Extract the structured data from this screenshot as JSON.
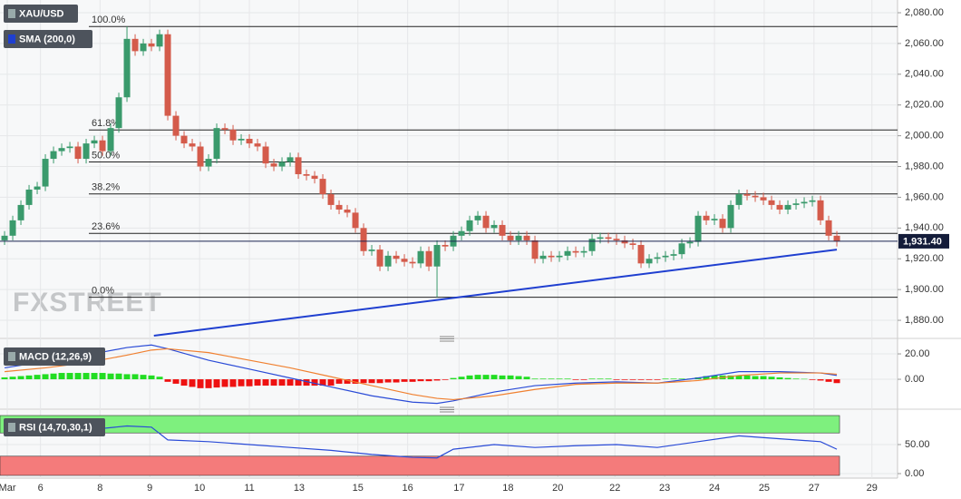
{
  "chart_data": [
    {
      "type": "candlestick",
      "title": "XAU/USD",
      "watermark": "FXSTREET",
      "up_color": "#3a9a6c",
      "down_color": "#d45b4b",
      "grid": true,
      "ylim": [
        1870,
        2086.5
      ],
      "yticks": [
        {
          "value": 1880,
          "label": "1,880.00"
        },
        {
          "value": 1900,
          "label": "1,900.00"
        },
        {
          "value": 1920,
          "label": "1,920.00"
        },
        {
          "value": 1940,
          "label": "1,940.00"
        },
        {
          "value": 1960,
          "label": "1,960.00"
        },
        {
          "value": 1980,
          "label": "1,980.00"
        },
        {
          "value": 2000,
          "label": "2,000.00"
        },
        {
          "value": 2020,
          "label": "2,020.00"
        },
        {
          "value": 2040,
          "label": "2,040.00"
        },
        {
          "value": 2060,
          "label": "2,060.00"
        },
        {
          "value": 2080,
          "label": "2,080.00"
        }
      ],
      "open": [
        1932,
        1935,
        1945,
        1955,
        1965,
        1967,
        1985,
        1990,
        1992,
        1993,
        1985,
        1995,
        1997,
        1990,
        2005,
        2025,
        2063,
        2055,
        2060,
        2058,
        2066,
        2013,
        2000,
        1995,
        1993,
        1980,
        1985,
        2005,
        2004,
        1997,
        1998,
        1995,
        1993,
        1982,
        1980,
        1983,
        1986,
        1975,
        1974,
        1972,
        1962,
        1955,
        1952,
        1950,
        1940,
        1925,
        1926,
        1915,
        1922,
        1920,
        1918,
        1917,
        1925,
        1915,
        1929,
        1928,
        1935,
        1938,
        1945,
        1948,
        1940,
        1942,
        1935,
        1932,
        1935,
        1932,
        1920,
        1922,
        1921,
        1922,
        1925,
        1924,
        1925,
        1933,
        1934,
        1933,
        1932,
        1930,
        1929,
        1917,
        1920,
        1921,
        1922,
        1923,
        1930,
        1931,
        1948,
        1945,
        1946,
        1940,
        1955,
        1962,
        1961,
        1960,
        1958,
        1955,
        1952,
        1955,
        1956,
        1957,
        1958,
        1945,
        1935
      ],
      "high": [
        1938,
        1948,
        1958,
        1968,
        1970,
        1988,
        1993,
        1995,
        1996,
        1996,
        1998,
        2000,
        2000,
        2008,
        2028,
        2071,
        2066,
        2063,
        2063,
        2069,
        2069,
        2016,
        2003,
        1998,
        1996,
        1988,
        2008,
        2008,
        2007,
        2001,
        2001,
        1998,
        1996,
        1985,
        1986,
        1989,
        1989,
        1978,
        1977,
        1975,
        1965,
        1958,
        1955,
        1953,
        1943,
        1929,
        1929,
        1925,
        1925,
        1923,
        1921,
        1928,
        1928,
        1932,
        1932,
        1938,
        1941,
        1948,
        1951,
        1951,
        1945,
        1945,
        1938,
        1938,
        1938,
        1935,
        1925,
        1925,
        1925,
        1928,
        1928,
        1928,
        1936,
        1937,
        1937,
        1936,
        1935,
        1933,
        1932,
        1923,
        1924,
        1925,
        1926,
        1933,
        1934,
        1951,
        1951,
        1949,
        1949,
        1958,
        1965,
        1965,
        1964,
        1963,
        1961,
        1958,
        1958,
        1959,
        1960,
        1961,
        1961,
        1948,
        1938
      ],
      "low": [
        1929,
        1932,
        1942,
        1952,
        1962,
        1964,
        1982,
        1987,
        1989,
        1982,
        1982,
        1992,
        1987,
        1987,
        2002,
        2022,
        2052,
        2052,
        2055,
        2055,
        2010,
        1997,
        1992,
        1990,
        1977,
        1977,
        1982,
        2001,
        1994,
        1994,
        1992,
        1990,
        1979,
        1977,
        1977,
        1980,
        1972,
        1971,
        1969,
        1959,
        1952,
        1949,
        1947,
        1937,
        1922,
        1922,
        1912,
        1912,
        1917,
        1915,
        1914,
        1914,
        1912,
        1895,
        1925,
        1925,
        1932,
        1935,
        1942,
        1937,
        1937,
        1932,
        1929,
        1929,
        1929,
        1917,
        1917,
        1918,
        1918,
        1919,
        1921,
        1921,
        1922,
        1930,
        1930,
        1929,
        1927,
        1926,
        1914,
        1914,
        1917,
        1918,
        1919,
        1920,
        1927,
        1928,
        1942,
        1942,
        1937,
        1937,
        1952,
        1958,
        1957,
        1955,
        1952,
        1949,
        1949,
        1952,
        1953,
        1954,
        1942,
        1932,
        1928
      ],
      "close": [
        1935,
        1945,
        1955,
        1965,
        1967,
        1985,
        1990,
        1992,
        1993,
        1985,
        1995,
        1997,
        1990,
        2005,
        2025,
        2063,
        2055,
        2060,
        2058,
        2066,
        2013,
        2000,
        1995,
        1993,
        1980,
        1985,
        2005,
        2004,
        1997,
        1998,
        1995,
        1993,
        1982,
        1980,
        1983,
        1986,
        1975,
        1974,
        1972,
        1962,
        1955,
        1952,
        1950,
        1940,
        1925,
        1926,
        1915,
        1922,
        1920,
        1918,
        1917,
        1925,
        1915,
        1929,
        1928,
        1935,
        1938,
        1945,
        1948,
        1940,
        1942,
        1935,
        1932,
        1935,
        1932,
        1920,
        1922,
        1921,
        1922,
        1925,
        1924,
        1925,
        1933,
        1934,
        1933,
        1932,
        1930,
        1929,
        1917,
        1920,
        1921,
        1922,
        1923,
        1930,
        1931,
        1948,
        1945,
        1946,
        1940,
        1955,
        1962,
        1961,
        1960,
        1958,
        1955,
        1952,
        1955,
        1956,
        1957,
        1958,
        1945,
        1935,
        1931.4
      ],
      "overlays": [
        {
          "name": "SMA (200,0)",
          "color": "#1f3fd0",
          "x": [
            18.3,
            102
          ],
          "values": [
            1870,
            1926
          ]
        }
      ],
      "levels": [
        {
          "label": "100.0%",
          "value": 2071
        },
        {
          "label": "61.8%",
          "value": 2003.8
        },
        {
          "label": "50.0%",
          "value": 1983
        },
        {
          "label": "38.2%",
          "value": 1962.2
        },
        {
          "label": "23.6%",
          "value": 1936.5
        },
        {
          "label": "0.0%",
          "value": 1895
        }
      ],
      "last_price": {
        "value": 1931.4,
        "label": "1,931.40"
      }
    },
    {
      "type": "macd",
      "title": "MACD (12,26,9)",
      "grid": true,
      "ylim": [
        -21.4,
        28.6
      ],
      "yticks": [
        {
          "value": 0,
          "label": "0.00"
        },
        {
          "value": 20,
          "label": "20.00"
        }
      ],
      "up_color": "#22dd22",
      "down_color": "#ee1111",
      "histogram": [
        1.5,
        2,
        2.5,
        3,
        3.5,
        4,
        4.5,
        5,
        5,
        5,
        5,
        5,
        5,
        4.5,
        4.5,
        4,
        4,
        3.5,
        3,
        2,
        -2,
        -3.5,
        -5,
        -6,
        -7,
        -7,
        -6.5,
        -6,
        -6,
        -5.5,
        -5.5,
        -5,
        -5,
        -5,
        -5,
        -5,
        -5,
        -5,
        -5,
        -5,
        -5,
        -3.5,
        -3.5,
        -3.5,
        -3,
        -3,
        -3,
        -2.5,
        -2.5,
        -2,
        -2,
        -1.5,
        -1.5,
        -1,
        -0.5,
        1,
        2,
        3,
        3.5,
        3.5,
        3.5,
        3,
        3,
        2.5,
        2,
        0.5,
        0.5,
        0.5,
        0.5,
        0.5,
        -0.5,
        -0.5,
        0.5,
        0.5,
        0.5,
        -0.5,
        -0.5,
        -0.5,
        -0.5,
        -0.5,
        -0.5,
        0.5,
        0.5,
        0.5,
        0.5,
        1.5,
        2.5,
        3,
        3,
        3,
        3,
        3,
        2.5,
        2.5,
        2,
        1.5,
        1,
        0.5,
        0.3,
        -0.5,
        -1,
        -2,
        -3
      ],
      "lines": [
        {
          "color": "#2a4bd7",
          "x": [
            0,
            5,
            10,
            15,
            18,
            20,
            25,
            30,
            35,
            40,
            45,
            50,
            53,
            55,
            60,
            65,
            70,
            75,
            80,
            85,
            90,
            95,
            100,
            102
          ],
          "values": [
            9,
            14,
            19,
            25,
            27,
            24,
            15,
            8,
            1,
            -6,
            -13,
            -18,
            -19,
            -17,
            -10,
            -5,
            -3,
            -2,
            -3,
            1,
            6,
            6,
            5,
            3
          ]
        },
        {
          "color": "#f08030",
          "x": [
            0,
            5,
            10,
            15,
            18,
            20,
            25,
            30,
            35,
            40,
            45,
            50,
            53,
            55,
            60,
            65,
            70,
            75,
            80,
            85,
            90,
            95,
            100,
            102
          ],
          "values": [
            6,
            9,
            13,
            19,
            23,
            24,
            21,
            15,
            9,
            2,
            -5,
            -12,
            -15,
            -16,
            -13,
            -8,
            -4,
            -3,
            -3,
            -1,
            3,
            5,
            5,
            4
          ]
        }
      ]
    },
    {
      "type": "rsi",
      "title": "RSI (14,70,30,1)",
      "grid": true,
      "ylim": [
        -4.7,
        104.7
      ],
      "yticks": [
        {
          "value": 0,
          "label": "0.00"
        },
        {
          "value": 50,
          "label": "50.00"
        }
      ],
      "upper": 70,
      "lower": 30,
      "upper_color": "#7ef07e",
      "lower_color": "#f47b7b",
      "line": {
        "color": "#2a4bd7",
        "x": [
          0,
          5,
          10,
          15,
          18,
          20,
          25,
          30,
          35,
          40,
          45,
          50,
          53,
          55,
          60,
          65,
          70,
          75,
          80,
          85,
          90,
          95,
          100,
          102
        ],
        "values": [
          65,
          70,
          75,
          82,
          80,
          58,
          55,
          50,
          45,
          40,
          33,
          28,
          27,
          42,
          50,
          45,
          48,
          50,
          45,
          55,
          65,
          60,
          55,
          42
        ]
      },
      "xlim": [
        -0.56,
        109.44
      ],
      "xticks": [
        {
          "value": 0.33,
          "label": "Mar"
        },
        {
          "value": 4.4,
          "label": "6"
        },
        {
          "value": 11.7,
          "label": "8"
        },
        {
          "value": 17.8,
          "label": "9"
        },
        {
          "value": 23.9,
          "label": "10"
        },
        {
          "value": 30,
          "label": "11"
        },
        {
          "value": 36.1,
          "label": "13"
        },
        {
          "value": 43.3,
          "label": "15"
        },
        {
          "value": 49.4,
          "label": "16"
        },
        {
          "value": 55.7,
          "label": "17"
        },
        {
          "value": 61.7,
          "label": "18"
        },
        {
          "value": 67.8,
          "label": "20"
        },
        {
          "value": 74.8,
          "label": "22"
        },
        {
          "value": 80.9,
          "label": "23"
        },
        {
          "value": 87,
          "label": "24"
        },
        {
          "value": 93.1,
          "label": "25"
        },
        {
          "value": 99.2,
          "label": "27"
        },
        {
          "value": 106.3,
          "label": "29"
        }
      ]
    }
  ]
}
